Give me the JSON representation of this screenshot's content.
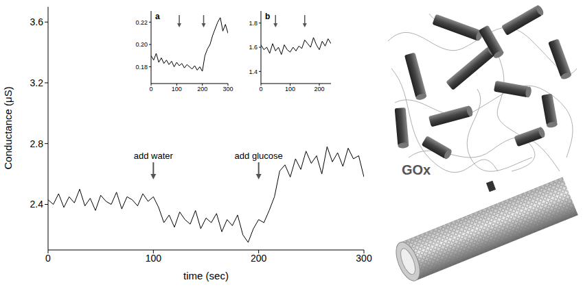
{
  "chart_data": [
    {
      "type": "line",
      "x_label": "time (sec)",
      "y_label": "Conductance (μS)",
      "xlim": [
        0,
        300
      ],
      "xticks": [
        0,
        100,
        200,
        300
      ],
      "ylim": [
        2.1,
        3.7
      ],
      "yticks": [
        2.4,
        2.8,
        3.2,
        3.6
      ],
      "color": "#000000",
      "annotations": [
        {
          "x": 100,
          "text": "add water"
        },
        {
          "x": 200,
          "text": "add glucose"
        }
      ],
      "x": [
        0,
        5,
        10,
        15,
        20,
        25,
        30,
        35,
        40,
        45,
        50,
        55,
        60,
        65,
        70,
        75,
        80,
        85,
        90,
        95,
        100,
        105,
        110,
        115,
        120,
        125,
        130,
        135,
        140,
        145,
        150,
        155,
        160,
        165,
        170,
        175,
        180,
        185,
        190,
        195,
        200,
        205,
        210,
        215,
        220,
        225,
        230,
        235,
        240,
        245,
        250,
        255,
        260,
        265,
        270,
        275,
        280,
        285,
        290,
        295,
        300
      ],
      "values": [
        2.43,
        2.4,
        2.47,
        2.38,
        2.45,
        2.41,
        2.5,
        2.39,
        2.44,
        2.36,
        2.46,
        2.42,
        2.4,
        2.48,
        2.37,
        2.45,
        2.43,
        2.39,
        2.47,
        2.42,
        2.45,
        2.38,
        2.28,
        2.33,
        2.25,
        2.35,
        2.3,
        2.27,
        2.36,
        2.24,
        2.31,
        2.28,
        2.34,
        2.22,
        2.3,
        2.26,
        2.33,
        2.2,
        2.15,
        2.24,
        2.3,
        2.28,
        2.36,
        2.45,
        2.62,
        2.66,
        2.58,
        2.7,
        2.63,
        2.75,
        2.67,
        2.72,
        2.6,
        2.78,
        2.68,
        2.74,
        2.65,
        2.77,
        2.7,
        2.72,
        2.58
      ]
    },
    {
      "type": "line",
      "title": "a",
      "xlim": [
        0,
        300
      ],
      "xticks": [
        0,
        100,
        200,
        300
      ],
      "ylim": [
        0.165,
        0.23
      ],
      "yticks": [
        {
          "value": 0.18,
          "label": "0.18"
        },
        {
          "value": 0.2,
          "label": "0.20"
        },
        {
          "value": 0.22,
          "label": "0.22"
        }
      ],
      "color": "#000000",
      "arrows": [
        110,
        205
      ],
      "x": [
        0,
        10,
        20,
        30,
        40,
        50,
        60,
        70,
        80,
        90,
        100,
        110,
        120,
        130,
        140,
        150,
        160,
        170,
        180,
        190,
        200,
        210,
        220,
        230,
        240,
        250,
        260,
        270,
        280,
        290,
        300
      ],
      "values": [
        0.19,
        0.186,
        0.192,
        0.184,
        0.188,
        0.183,
        0.186,
        0.182,
        0.185,
        0.18,
        0.184,
        0.181,
        0.183,
        0.179,
        0.182,
        0.18,
        0.178,
        0.181,
        0.177,
        0.18,
        0.176,
        0.19,
        0.196,
        0.2,
        0.208,
        0.214,
        0.22,
        0.224,
        0.212,
        0.218,
        0.21
      ]
    },
    {
      "type": "line",
      "title": "b",
      "xlim": [
        0,
        240
      ],
      "xticks": [
        0,
        100,
        200
      ],
      "ylim": [
        1.3,
        1.9
      ],
      "yticks": [
        1.4,
        1.6,
        1.8
      ],
      "color": "#000000",
      "arrows": [
        50,
        150
      ],
      "x": [
        0,
        10,
        20,
        30,
        40,
        50,
        60,
        70,
        80,
        90,
        100,
        110,
        120,
        130,
        140,
        150,
        160,
        170,
        180,
        190,
        200,
        210,
        220,
        230,
        240
      ],
      "values": [
        1.62,
        1.58,
        1.6,
        1.55,
        1.63,
        1.57,
        1.6,
        1.54,
        1.62,
        1.58,
        1.56,
        1.6,
        1.57,
        1.61,
        1.59,
        1.66,
        1.63,
        1.6,
        1.68,
        1.62,
        1.58,
        1.65,
        1.61,
        1.67,
        1.63
      ]
    }
  ],
  "diagram": {
    "label": "GOx"
  }
}
